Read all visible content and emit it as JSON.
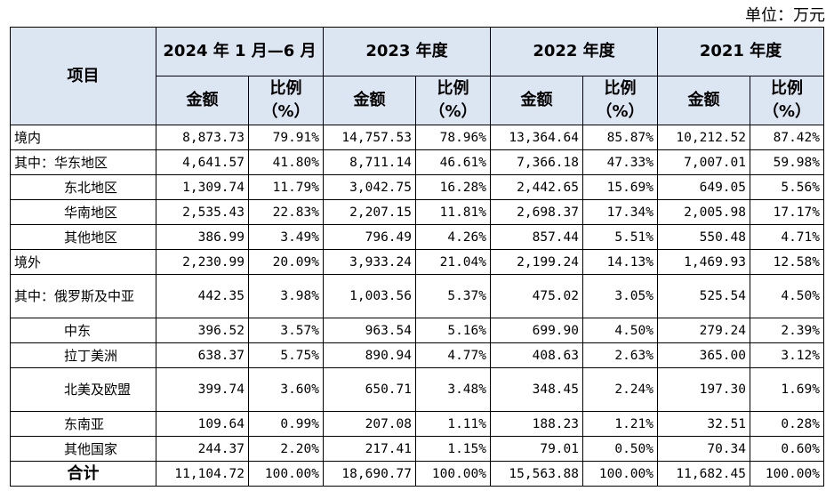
{
  "unit_label": "单位：万元",
  "header": {
    "item": "项目",
    "periods": [
      "2024 年 1 月—6 月",
      "2023 年度",
      "2022 年度",
      "2021 年度"
    ],
    "amount": "金额",
    "ratio_line1": "比例",
    "ratio_line2": "（%）"
  },
  "rows": [
    {
      "label": "境内",
      "cells": [
        "8,873.73",
        "79.91%",
        "14,757.53",
        "78.96%",
        "13,364.64",
        "85.87%",
        "10,212.52",
        "87.42%"
      ]
    },
    {
      "label": "其中：华东地区",
      "cells": [
        "4,641.57",
        "41.80%",
        "8,711.14",
        "46.61%",
        "7,366.18",
        "47.33%",
        "7,007.01",
        "59.98%"
      ]
    },
    {
      "label": "东北地区",
      "cells": [
        "1,309.74",
        "11.79%",
        "3,042.75",
        "16.28%",
        "2,442.65",
        "15.69%",
        "649.05",
        "5.56%"
      ]
    },
    {
      "label": "华南地区",
      "cells": [
        "2,535.43",
        "22.83%",
        "2,207.15",
        "11.81%",
        "2,698.37",
        "17.34%",
        "2,005.98",
        "17.17%"
      ]
    },
    {
      "label": "其他地区",
      "cells": [
        "386.99",
        "3.49%",
        "796.49",
        "4.26%",
        "857.44",
        "5.51%",
        "550.48",
        "4.71%"
      ]
    },
    {
      "label": "境外",
      "cells": [
        "2,230.99",
        "20.09%",
        "3,933.24",
        "21.04%",
        "2,199.24",
        "14.13%",
        "1,469.93",
        "12.58%"
      ]
    },
    {
      "label": "其中：俄罗斯及中亚",
      "cells": [
        "442.35",
        "3.98%",
        "1,003.56",
        "5.37%",
        "475.02",
        "3.05%",
        "525.54",
        "4.50%"
      ]
    },
    {
      "label": "中东",
      "cells": [
        "396.52",
        "3.57%",
        "963.54",
        "5.16%",
        "699.90",
        "4.50%",
        "279.24",
        "2.39%"
      ]
    },
    {
      "label": "拉丁美洲",
      "cells": [
        "638.37",
        "5.75%",
        "890.94",
        "4.77%",
        "408.63",
        "2.63%",
        "365.00",
        "3.12%"
      ]
    },
    {
      "label": "北美及欧盟",
      "cells": [
        "399.74",
        "3.60%",
        "650.71",
        "3.48%",
        "348.45",
        "2.24%",
        "197.30",
        "1.69%"
      ]
    },
    {
      "label": "东南亚",
      "cells": [
        "109.64",
        "0.99%",
        "207.08",
        "1.11%",
        "188.23",
        "1.21%",
        "32.51",
        "0.28%"
      ]
    },
    {
      "label": "其他国家",
      "cells": [
        "244.37",
        "2.20%",
        "217.41",
        "1.15%",
        "79.01",
        "0.50%",
        "70.34",
        "0.60%"
      ]
    }
  ],
  "total": {
    "label": "合计",
    "cells": [
      "11,104.72",
      "100.00%",
      "18,690.77",
      "100.00%",
      "15,563.88",
      "100.00%",
      "11,682.45",
      "100.00%"
    ]
  }
}
